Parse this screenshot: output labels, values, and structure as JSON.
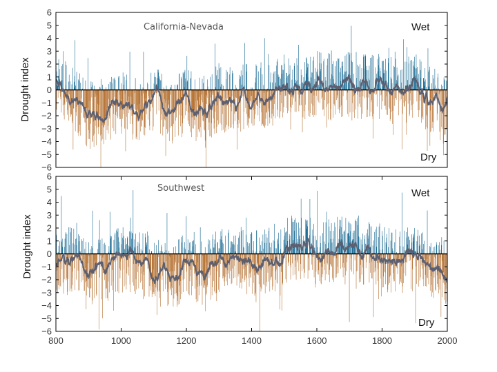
{
  "chart_data": [
    {
      "type": "bar",
      "panel": "top",
      "title": "California-Nevada",
      "ylabel": "Drought index",
      "annotations": {
        "wet": "Wet",
        "dry": "Dry"
      },
      "ylim": [
        -6,
        6
      ],
      "yticks": [
        6,
        5,
        4,
        3,
        2,
        1,
        0,
        -1,
        -2,
        -3,
        -4,
        -5,
        -6
      ],
      "xlim": [
        800,
        2000
      ],
      "colors": {
        "wet": "#1f6e96",
        "dry": "#b8773a",
        "smooth": "#5c5f70"
      },
      "series": [
        {
          "kind": "annual bars",
          "note": "one bar per year, 800-2000; positive = Wet (blue), negative = Dry (orange)"
        },
        {
          "kind": "smoothed line",
          "color": "#5c5f70"
        }
      ],
      "anchor_years": [
        800,
        850,
        900,
        950,
        1000,
        1050,
        1100,
        1150,
        1200,
        1250,
        1300,
        1350,
        1400,
        1450,
        1500,
        1550,
        1600,
        1650,
        1700,
        1750,
        1800,
        1850,
        1900,
        1950,
        2000
      ],
      "smooth_anchors": [
        0.8,
        -0.6,
        -2.1,
        -1.6,
        -1.0,
        -1.4,
        -0.7,
        -1.8,
        -0.9,
        -1.5,
        -0.8,
        -0.6,
        -0.4,
        -0.5,
        0.2,
        0.1,
        0.5,
        0.2,
        0.4,
        0.3,
        0.2,
        -0.2,
        0.3,
        -0.9,
        -1.0
      ]
    },
    {
      "type": "bar",
      "panel": "bottom",
      "title": "Southwest",
      "ylabel": "Drought index",
      "annotations": {
        "wet": "Wet",
        "dry": "Dry"
      },
      "ylim": [
        -6,
        6
      ],
      "yticks": [
        6,
        5,
        4,
        3,
        2,
        1,
        0,
        -1,
        -2,
        -3,
        -4,
        -5,
        -6
      ],
      "xlim": [
        800,
        2000
      ],
      "xticks": [
        800,
        1000,
        1200,
        1400,
        1600,
        1800,
        2000
      ],
      "colors": {
        "wet": "#1f6e96",
        "dry": "#b8773a",
        "smooth": "#5c5f70"
      },
      "series": [
        {
          "kind": "annual bars",
          "note": "one bar per year, 800-2000; positive = Wet (blue), negative = Dry (orange)"
        },
        {
          "kind": "smoothed line",
          "color": "#5c5f70"
        }
      ],
      "anchor_years": [
        800,
        850,
        900,
        950,
        1000,
        1050,
        1100,
        1150,
        1200,
        1250,
        1300,
        1350,
        1400,
        1450,
        1500,
        1550,
        1600,
        1650,
        1700,
        1750,
        1800,
        1850,
        1900,
        1950,
        2000
      ],
      "smooth_anchors": [
        -1.0,
        -0.4,
        -1.5,
        -1.2,
        -0.4,
        -0.8,
        -0.9,
        -2.3,
        -0.6,
        -1.6,
        -0.5,
        -0.2,
        -0.8,
        -0.6,
        0.3,
        0.5,
        0.2,
        0.4,
        0.6,
        0.1,
        -0.3,
        -0.6,
        -0.4,
        -1.0,
        -1.4
      ]
    }
  ]
}
